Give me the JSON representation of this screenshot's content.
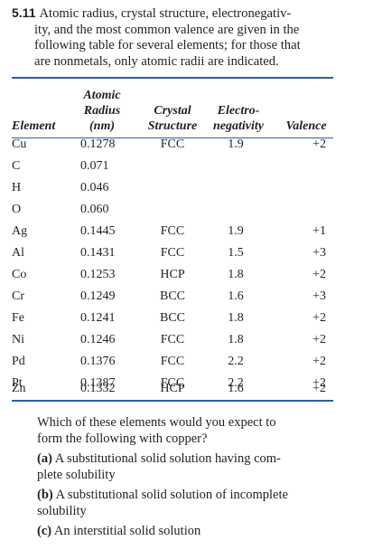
{
  "problem": {
    "number": "5.11",
    "lines": [
      "Atomic radius, crystal structure, electronegativ-",
      "ity, and the most common valence are given in the",
      "following table for several elements; for those that",
      "are nonmetals, only atomic radii are indicated."
    ]
  },
  "table": {
    "header": {
      "element": "Element",
      "radius_l1": "Atomic",
      "radius_l2": "Radius",
      "radius_l3": "(nm)",
      "structure_l1": "Crystal",
      "structure_l2": "Structure",
      "electro_l1": "Electro-",
      "electro_l2": "negativity",
      "valence": "Valence"
    },
    "rows": [
      {
        "element": "Cu",
        "radius": "0.1278",
        "structure": "FCC",
        "electronegativity": "1.9",
        "valence": "+2"
      },
      {
        "element": "C",
        "radius": "0.071",
        "structure": "",
        "electronegativity": "",
        "valence": ""
      },
      {
        "element": "H",
        "radius": "0.046",
        "structure": "",
        "electronegativity": "",
        "valence": ""
      },
      {
        "element": "O",
        "radius": "0.060",
        "structure": "",
        "electronegativity": "",
        "valence": ""
      },
      {
        "element": "Ag",
        "radius": "0.1445",
        "structure": "FCC",
        "electronegativity": "1.9",
        "valence": "+1"
      },
      {
        "element": "Al",
        "radius": "0.1431",
        "structure": "FCC",
        "electronegativity": "1.5",
        "valence": "+3"
      },
      {
        "element": "Co",
        "radius": "0.1253",
        "structure": "HCP",
        "electronegativity": "1.8",
        "valence": "+2"
      },
      {
        "element": "Cr",
        "radius": "0.1249",
        "structure": "BCC",
        "electronegativity": "1.6",
        "valence": "+3"
      },
      {
        "element": "Fe",
        "radius": "0.1241",
        "structure": "BCC",
        "electronegativity": "1.8",
        "valence": "+2"
      },
      {
        "element": "Ni",
        "radius": "0.1246",
        "structure": "FCC",
        "electronegativity": "1.8",
        "valence": "+2"
      },
      {
        "element": "Pd",
        "radius": "0.1376",
        "structure": "FCC",
        "electronegativity": "2.2",
        "valence": "+2"
      },
      {
        "element": "Pt",
        "radius": "0.1387",
        "structure": "FCC",
        "electronegativity": "2.2",
        "valence": "+2"
      },
      {
        "element": "Zn",
        "radius": "0.1332",
        "structure": "HCP",
        "electronegativity": "1.6",
        "valence": "+2"
      }
    ]
  },
  "question": {
    "stem_l1": "Which of these elements would you expect to",
    "stem_l2": "form the following with copper?",
    "options": [
      {
        "label": "(a)",
        "l1": "A substitutional solid solution having com-",
        "l2": "plete solubility"
      },
      {
        "label": "(b)",
        "l1": "A substitutional solid solution of incomplete",
        "l2": "solubility"
      },
      {
        "label": "(c)",
        "l1": "An interstitial solid solution",
        "l2": ""
      }
    ]
  },
  "colors": {
    "rule": "#2b5fa8",
    "text": "#231f20"
  }
}
